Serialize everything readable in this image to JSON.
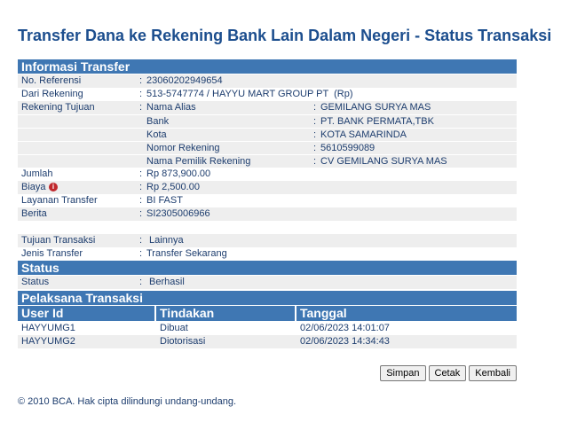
{
  "title": "Transfer Dana ke Rekening Bank Lain Dalam Negeri - Status Transaksi",
  "info": {
    "header": "Informasi Transfer",
    "no_ref": {
      "label": "No. Referensi",
      "value": "23060202949654"
    },
    "dari": {
      "label": "Dari Rekening",
      "value": "513-5747774 / HAYYU MART GROUP PT  (Rp)"
    },
    "tujuan_label": "Rekening Tujuan",
    "tujuan": [
      {
        "label": "Nama Alias",
        "value": "GEMILANG SURYA MAS"
      },
      {
        "label": "Bank",
        "value": "PT. BANK PERMATA,TBK"
      },
      {
        "label": "Kota",
        "value": "KOTA SAMARINDA"
      },
      {
        "label": "Nomor Rekening",
        "value": "5610599089"
      },
      {
        "label": "Nama Pemilik Rekening",
        "value": "CV GEMILANG SURYA MAS"
      }
    ],
    "jumlah": {
      "label": "Jumlah",
      "value": "Rp 873,900.00"
    },
    "biaya": {
      "label": "Biaya",
      "value": "Rp 2,500.00"
    },
    "layanan": {
      "label": "Layanan Transfer",
      "value": "BI FAST"
    },
    "berita": {
      "label": "Berita",
      "value": "SI2305006966"
    },
    "tujuan_trx": {
      "label": "Tujuan Transaksi",
      "value": " Lainnya"
    },
    "jenis": {
      "label": "Jenis Transfer",
      "value": "Transfer Sekarang"
    }
  },
  "colon": ":",
  "status": {
    "header": "Status",
    "label": "Status",
    "value": " Berhasil"
  },
  "pelaksana": {
    "header": "Pelaksana Transaksi",
    "columns": [
      "User Id",
      "Tindakan",
      "Tanggal"
    ],
    "rows": [
      [
        "HAYYUMG1",
        "Dibuat",
        "02/06/2023 14:01:07"
      ],
      [
        "HAYYUMG2",
        "Diotorisasi",
        "02/06/2023 14:34:43"
      ]
    ]
  },
  "buttons": {
    "simpan": "Simpan",
    "cetak": "Cetak",
    "kembali": "Kembali"
  },
  "footer": "©  2010 BCA. Hak cipta dilindungi undang-undang."
}
